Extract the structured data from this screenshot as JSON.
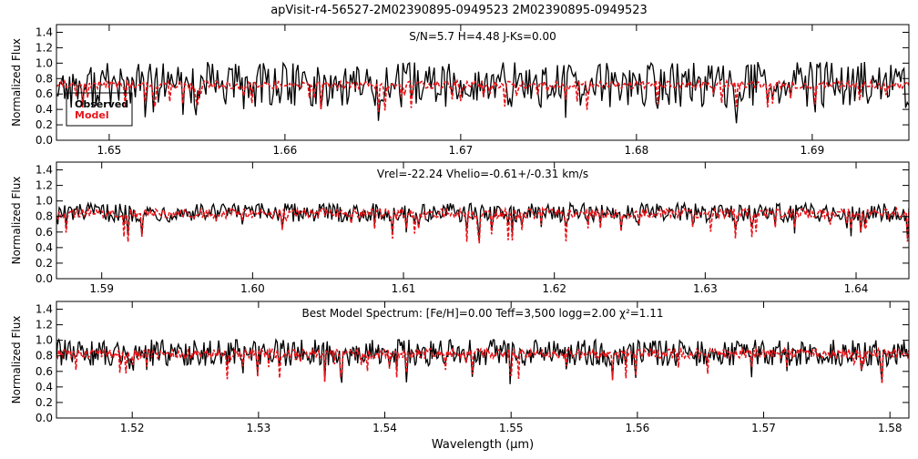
{
  "title": "apVisit-r4-56527-2M02390895-0949523   2M02390895-0949523",
  "colors": {
    "observed": "#000000",
    "model": "#e8161b",
    "axes": "#000000"
  },
  "chart_data": [
    {
      "type": "line",
      "annotation": "S/N=5.7 H=4.48 J-Ks=0.00",
      "ylabel": "Normalized Flux",
      "xlabel": "",
      "xlim": [
        1.647,
        1.6955
      ],
      "ylim": [
        0.0,
        1.5
      ],
      "xticks": [
        "1.65",
        "1.66",
        "1.67",
        "1.68",
        "1.69"
      ],
      "yticks": [
        "0.0",
        "0.2",
        "0.4",
        "0.6",
        "0.8",
        "1.0",
        "1.2",
        "1.4"
      ],
      "legend": {
        "placement": "left",
        "entries": [
          "Observed",
          "Model"
        ]
      },
      "series": [
        {
          "name": "Observed",
          "style": "solid",
          "color": "#000000",
          "level": 0.72,
          "noise": 0.3,
          "xstart": 1.647,
          "xend": 1.6955,
          "n": 520
        },
        {
          "name": "Model",
          "style": "dashed",
          "color": "#e8161b",
          "level": 0.72,
          "noise": 0.05,
          "xstart": 1.647,
          "xend": 1.6955,
          "n": 520
        }
      ]
    },
    {
      "type": "line",
      "annotation": "Vrel=-22.24  Vhelio=-0.61+/-0.31 km/s",
      "ylabel": "Normalized Flux",
      "xlabel": "",
      "xlim": [
        1.587,
        1.6435
      ],
      "ylim": [
        0.0,
        1.5
      ],
      "xticks": [
        "1.59",
        "1.60",
        "1.61",
        "1.62",
        "1.63",
        "1.64"
      ],
      "yticks": [
        "0.0",
        "0.2",
        "0.4",
        "0.6",
        "0.8",
        "1.0",
        "1.2",
        "1.4"
      ],
      "series": [
        {
          "name": "Observed",
          "style": "solid",
          "color": "#000000",
          "level": 0.85,
          "noise": 0.12,
          "xstart": 1.587,
          "xend": 1.6435,
          "n": 620
        },
        {
          "name": "Model",
          "style": "dashed",
          "color": "#e8161b",
          "level": 0.84,
          "noise": 0.06,
          "xstart": 1.587,
          "xend": 1.6435,
          "n": 620
        }
      ]
    },
    {
      "type": "line",
      "annotation": "Best Model Spectrum: [Fe/H]=0.00 Teff=3,500 logg=2.00  χ²=1.11",
      "ylabel": "Normalized Flux",
      "xlabel": "Wavelength (μm)",
      "xlim": [
        1.514,
        1.5815
      ],
      "ylim": [
        0.0,
        1.5
      ],
      "xticks": [
        "1.52",
        "1.53",
        "1.54",
        "1.55",
        "1.56",
        "1.57",
        "1.58"
      ],
      "yticks": [
        "0.0",
        "0.2",
        "0.4",
        "0.6",
        "0.8",
        "1.0",
        "1.2",
        "1.4"
      ],
      "series": [
        {
          "name": "Observed",
          "style": "solid",
          "color": "#000000",
          "level": 0.84,
          "noise": 0.17,
          "xstart": 1.514,
          "xend": 1.5815,
          "n": 700
        },
        {
          "name": "Model",
          "style": "dashed",
          "color": "#e8161b",
          "level": 0.83,
          "noise": 0.06,
          "xstart": 1.514,
          "xend": 1.5815,
          "n": 700
        }
      ]
    }
  ]
}
